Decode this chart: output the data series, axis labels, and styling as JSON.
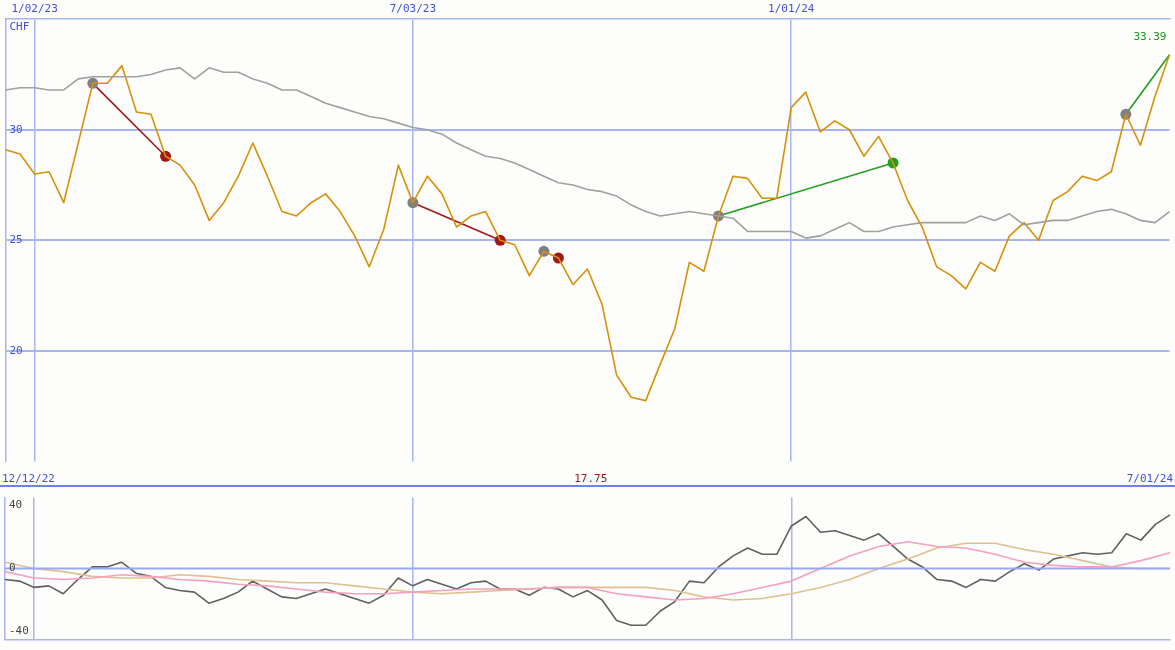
{
  "chart_data": [
    {
      "type": "line",
      "ylabel": "CHF",
      "marker": "none",
      "grid": true,
      "legend": false,
      "x": [
        "2022-12-19",
        "2022-12-26",
        "2023-01-02",
        "2023-01-09",
        "2023-01-16",
        "2023-01-23",
        "2023-01-30",
        "2023-02-06",
        "2023-02-13",
        "2023-02-20",
        "2023-02-27",
        "2023-03-06",
        "2023-03-13",
        "2023-03-20",
        "2023-03-27",
        "2023-04-03",
        "2023-04-10",
        "2023-04-17",
        "2023-04-24",
        "2023-05-01",
        "2023-05-08",
        "2023-05-15",
        "2023-05-22",
        "2023-05-29",
        "2023-06-05",
        "2023-06-12",
        "2023-06-19",
        "2023-06-26",
        "2023-07-03",
        "2023-07-10",
        "2023-07-17",
        "2023-07-24",
        "2023-07-31",
        "2023-08-07",
        "2023-08-14",
        "2023-08-21",
        "2023-08-28",
        "2023-09-04",
        "2023-09-11",
        "2023-09-18",
        "2023-09-25",
        "2023-10-02",
        "2023-10-09",
        "2023-10-16",
        "2023-10-23",
        "2023-10-30",
        "2023-11-06",
        "2023-11-13",
        "2023-11-20",
        "2023-11-27",
        "2023-12-04",
        "2023-12-11",
        "2023-12-18",
        "2023-12-25",
        "2024-01-01",
        "2024-01-08",
        "2024-01-15",
        "2024-01-22",
        "2024-01-29",
        "2024-02-05",
        "2024-02-12",
        "2024-02-19",
        "2024-02-26",
        "2024-03-04",
        "2024-03-11",
        "2024-03-18",
        "2024-03-25",
        "2024-04-01",
        "2024-04-08",
        "2024-04-15",
        "2024-04-22",
        "2024-04-29",
        "2024-05-06",
        "2024-05-13",
        "2024-05-20",
        "2024-05-27",
        "2024-06-03",
        "2024-06-10",
        "2024-06-17",
        "2024-06-24",
        "2024-07-01"
      ],
      "series": [
        {
          "color": "#a0a0a0",
          "values": [
            31.8,
            31.9,
            31.9,
            31.8,
            31.8,
            32.3,
            32.4,
            32.4,
            32.4,
            32.4,
            32.5,
            32.7,
            32.8,
            32.3,
            32.8,
            32.6,
            32.6,
            32.3,
            32.1,
            31.8,
            31.8,
            31.5,
            31.2,
            31.0,
            30.8,
            30.6,
            30.5,
            30.3,
            30.1,
            30.0,
            29.8,
            29.4,
            29.1,
            28.8,
            28.7,
            28.5,
            28.2,
            27.9,
            27.6,
            27.5,
            27.3,
            27.2,
            27.0,
            26.6,
            26.3,
            26.1,
            26.2,
            26.3,
            26.2,
            26.1,
            26.0,
            25.4,
            25.4,
            25.4,
            25.4,
            25.1,
            25.2,
            25.5,
            25.8,
            25.4,
            25.4,
            25.6,
            25.7,
            25.8,
            25.8,
            25.8,
            25.8,
            26.1,
            25.9,
            26.2,
            25.7,
            25.8,
            25.9,
            25.9,
            26.1,
            26.3,
            26.4,
            26.2,
            25.9,
            25.8,
            26.3
          ]
        },
        {
          "color": "#d89008",
          "values": [
            29.1,
            28.9,
            28.0,
            28.1,
            26.7,
            29.4,
            32.1,
            32.1,
            32.9,
            30.8,
            30.7,
            28.8,
            28.4,
            27.5,
            25.9,
            26.7,
            27.9,
            29.4,
            27.9,
            26.3,
            26.1,
            26.7,
            27.1,
            26.3,
            25.2,
            23.8,
            25.5,
            28.4,
            26.7,
            27.9,
            27.1,
            25.6,
            26.1,
            26.3,
            25.0,
            24.8,
            23.4,
            24.5,
            24.2,
            23.0,
            23.7,
            22.1,
            18.9,
            17.9,
            17.75,
            19.4,
            21.0,
            24.0,
            23.6,
            26.1,
            27.9,
            27.8,
            26.9,
            26.9,
            31.0,
            31.7,
            29.9,
            30.4,
            30.0,
            28.8,
            29.7,
            28.5,
            26.8,
            25.6,
            23.8,
            23.4,
            22.8,
            24.0,
            23.6,
            25.2,
            25.8,
            25.0,
            26.8,
            27.2,
            27.9,
            27.7,
            28.1,
            30.7,
            29.3,
            31.5,
            33.39
          ]
        },
        {
          "color": "#a01818",
          "marker": "circle",
          "x": [
            "2023-01-30",
            "2023-03-06"
          ],
          "values": [
            32.1,
            28.8
          ],
          "colors": [
            "#808080",
            "#a01818"
          ]
        },
        {
          "color": "#a01818",
          "marker": "circle",
          "x": [
            "2023-07-03",
            "2023-08-14"
          ],
          "values": [
            26.7,
            25.0
          ],
          "colors": [
            "#808080",
            "#a01818"
          ]
        },
        {
          "color": "#f4a0c0",
          "marker": "circle",
          "x": [
            "2023-09-04",
            "2023-09-11"
          ],
          "values": [
            24.5,
            24.2
          ],
          "colors": [
            "#808080",
            "#a01818"
          ]
        },
        {
          "color": "#20a020",
          "marker": "circle",
          "x": [
            "2023-11-27",
            "2024-02-19"
          ],
          "values": [
            26.1,
            28.5
          ],
          "colors": [
            "#808080",
            "#20a020"
          ]
        },
        {
          "color": "#20a020",
          "marker": "circle",
          "x": [
            "2024-06-10",
            "2024-07-01"
          ],
          "values": [
            30.7,
            33.39
          ],
          "colors": [
            "#808080",
            null
          ]
        }
      ],
      "xlim": [
        "2022-12-19",
        "2024-07-01"
      ],
      "xticks": [
        {
          "value": "2023-01-02",
          "label": "1/02/23"
        },
        {
          "value": "2023-07-03",
          "label": "7/03/23"
        },
        {
          "value": "2024-01-01",
          "label": "1/01/24"
        }
      ],
      "ylim": [
        15,
        35
      ],
      "yticks": [
        20,
        25,
        30
      ],
      "annotations": [
        {
          "text": "33.39",
          "x": "2024-07-01",
          "y": 33.39
        }
      ]
    },
    {
      "type": "line",
      "marker": "none",
      "grid": "x",
      "legend": false,
      "tick_labels": "y",
      "x": [
        "2022-12-19",
        "2022-12-26",
        "2023-01-02",
        "2023-01-09",
        "2023-01-16",
        "2023-01-23",
        "2023-01-30",
        "2023-02-06",
        "2023-02-13",
        "2023-02-20",
        "2023-02-27",
        "2023-03-06",
        "2023-03-13",
        "2023-03-20",
        "2023-03-27",
        "2023-04-03",
        "2023-04-10",
        "2023-04-17",
        "2023-04-24",
        "2023-05-01",
        "2023-05-08",
        "2023-05-15",
        "2023-05-22",
        "2023-05-29",
        "2023-06-05",
        "2023-06-12",
        "2023-06-19",
        "2023-06-26",
        "2023-07-03",
        "2023-07-10",
        "2023-07-17",
        "2023-07-24",
        "2023-07-31",
        "2023-08-07",
        "2023-08-14",
        "2023-08-21",
        "2023-08-28",
        "2023-09-04",
        "2023-09-11",
        "2023-09-18",
        "2023-09-25",
        "2023-10-02",
        "2023-10-09",
        "2023-10-16",
        "2023-10-23",
        "2023-10-30",
        "2023-11-06",
        "2023-11-13",
        "2023-11-20",
        "2023-11-27",
        "2023-12-04",
        "2023-12-11",
        "2023-12-18",
        "2023-12-25",
        "2024-01-01",
        "2024-01-08",
        "2024-01-15",
        "2024-01-22",
        "2024-01-29",
        "2024-02-05",
        "2024-02-12",
        "2024-02-19",
        "2024-02-26",
        "2024-03-04",
        "2024-03-11",
        "2024-03-18",
        "2024-03-25",
        "2024-04-01",
        "2024-04-08",
        "2024-04-15",
        "2024-04-22",
        "2024-04-29",
        "2024-05-06",
        "2024-05-13",
        "2024-05-20",
        "2024-05-27",
        "2024-06-03",
        "2024-06-10",
        "2024-06-17",
        "2024-06-24",
        "2024-07-01"
      ],
      "series": [
        {
          "color": "#f4a0c0",
          "x": [
            "2022-12-19",
            "2023-01-02",
            "2023-01-16",
            "2023-01-30",
            "2023-02-13",
            "2023-02-27",
            "2023-03-13",
            "2023-03-27",
            "2023-04-10",
            "2023-04-24",
            "2023-05-08",
            "2023-05-22",
            "2023-06-05",
            "2023-06-19",
            "2023-07-03",
            "2023-07-17",
            "2023-07-31",
            "2023-08-14",
            "2023-08-28",
            "2023-09-11",
            "2023-09-25",
            "2023-10-09",
            "2023-10-23",
            "2023-11-06",
            "2023-11-20",
            "2023-12-04",
            "2023-12-18",
            "2024-01-01",
            "2024-01-15",
            "2024-01-29",
            "2024-02-12",
            "2024-02-26",
            "2024-03-11",
            "2024-03-25",
            "2024-04-08",
            "2024-04-22",
            "2024-05-06",
            "2024-05-20",
            "2024-06-03",
            "2024-06-17",
            "2024-07-01"
          ],
          "values": [
            -2,
            -6,
            -7,
            -6,
            -4,
            -5,
            -7,
            -8,
            -10,
            -11,
            -13,
            -15,
            -16,
            -16,
            -15,
            -14,
            -13,
            -13,
            -13,
            -12,
            -12,
            -16,
            -18,
            -20,
            -19,
            -16,
            -12,
            -8,
            0,
            8,
            14,
            17,
            14,
            13,
            9,
            4,
            2,
            1,
            1,
            5,
            10
          ]
        },
        {
          "color": "#e0c090",
          "x": [
            "2022-12-19",
            "2023-01-02",
            "2023-01-16",
            "2023-01-30",
            "2023-02-13",
            "2023-02-27",
            "2023-03-13",
            "2023-03-27",
            "2023-04-10",
            "2023-04-24",
            "2023-05-08",
            "2023-05-22",
            "2023-06-05",
            "2023-06-19",
            "2023-07-03",
            "2023-07-17",
            "2023-07-31",
            "2023-08-14",
            "2023-08-28",
            "2023-09-11",
            "2023-09-25",
            "2023-10-09",
            "2023-10-23",
            "2023-11-06",
            "2023-11-20",
            "2023-12-04",
            "2023-12-18",
            "2024-01-01",
            "2024-01-15",
            "2024-01-29",
            "2024-02-12",
            "2024-02-26",
            "2024-03-11",
            "2024-03-25",
            "2024-04-08",
            "2024-04-22",
            "2024-05-06",
            "2024-05-20",
            "2024-06-03",
            "2024-06-17",
            "2024-07-01"
          ],
          "values": [
            4,
            0,
            -2,
            -5,
            -6,
            -6,
            -4,
            -5,
            -7,
            -8,
            -9,
            -9,
            -11,
            -13,
            -15,
            -16,
            -15,
            -14,
            -13,
            -12,
            -12,
            -12,
            -12,
            -14,
            -18,
            -20,
            -19,
            -16,
            -12,
            -7,
            0,
            6,
            13,
            16,
            16,
            12,
            9,
            5,
            1,
            0,
            0
          ]
        },
        {
          "color": "#606060",
          "values": [
            -7,
            -8,
            -12,
            -11,
            -16,
            -7,
            1,
            1,
            4,
            -3,
            -5,
            -12,
            -14,
            -15,
            -22,
            -19,
            -15,
            -8,
            -13,
            -18,
            -19,
            -16,
            -13,
            -16,
            -19,
            -22,
            -17,
            -6,
            -11,
            -7,
            -10,
            -13,
            -9,
            -8,
            -13,
            -13,
            -17,
            -12,
            -13,
            -18,
            -14,
            -20,
            -33,
            -36,
            -36,
            -27,
            -21,
            -8,
            -9,
            1,
            8,
            13,
            9,
            9,
            27,
            33,
            23,
            24,
            21,
            18,
            22,
            14,
            6,
            1,
            -7,
            -8,
            -12,
            -7,
            -8,
            -2,
            3,
            -1,
            6,
            8,
            10,
            9,
            10,
            22,
            18,
            28,
            34
          ]
        }
      ],
      "xlim": [
        "2022-12-19",
        "2024-07-01"
      ],
      "xticks": [
        {
          "value": "2023-01-02",
          "label": null
        },
        {
          "value": "2023-07-03",
          "label": null
        },
        {
          "value": "2024-01-01",
          "label": null
        }
      ],
      "ylim": [
        -45,
        45
      ],
      "yticks": [
        -40,
        0,
        40
      ],
      "ref_lines": [
        {
          "axis": "y",
          "value": 0,
          "color": "#9aa8f0"
        }
      ],
      "annotations": [
        "12/12/22",
        "17.75",
        "7/01/24"
      ]
    }
  ]
}
